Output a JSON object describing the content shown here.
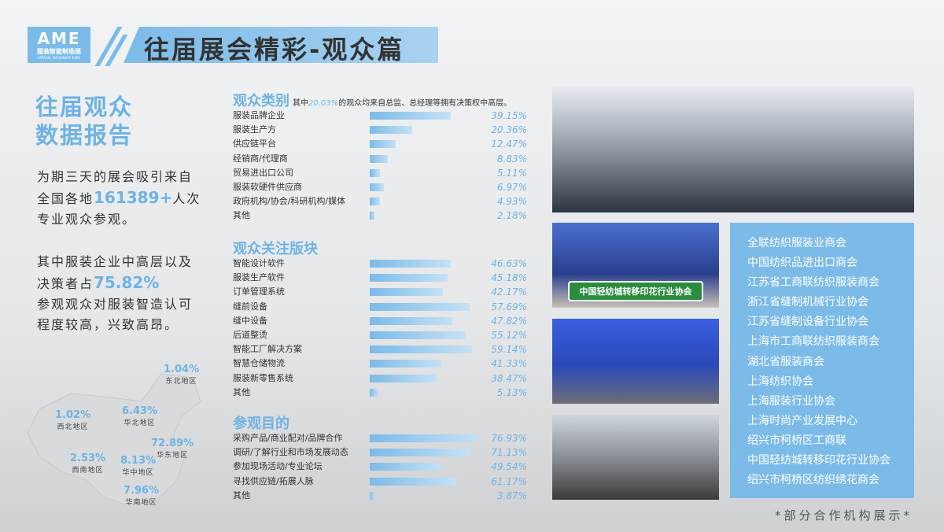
{
  "header": {
    "logo_main": "AME",
    "logo_sub": "服装智能制造展",
    "logo_en": "APPAREL MACHINERY EXPO",
    "title": "往届展会精彩-观众篇"
  },
  "left": {
    "title_line1": "往届观众",
    "title_line2": "数据报告",
    "p1_a": "为期三天的展会吸引来自全国各地",
    "p1_num": "161389+",
    "p1_b": "人次专业观众参观。",
    "p2_a": "其中服装企业中高层以及决策者占",
    "p2_num": "75.82%",
    "p2_b": "参观观众对服装智造认可程度较高，兴致高昂。"
  },
  "regions": [
    {
      "pct": "1.04%",
      "name": "东北地区"
    },
    {
      "pct": "1.02%",
      "name": "西北地区"
    },
    {
      "pct": "6.43%",
      "name": "华北地区"
    },
    {
      "pct": "72.89%",
      "name": "华东地区"
    },
    {
      "pct": "2.53%",
      "name": "西南地区"
    },
    {
      "pct": "8.13%",
      "name": "华中地区"
    },
    {
      "pct": "7.96%",
      "name": "华南地区"
    }
  ],
  "sections": [
    {
      "title": "观众类别",
      "note_a": "其中",
      "note_pct": "20.03%",
      "note_b": "的观众均来自总监、总经理等拥有决策权中高层。",
      "items": [
        [
          "服装品牌企业",
          39.15
        ],
        [
          "服装生产方",
          20.36
        ],
        [
          "供应链平台",
          12.47
        ],
        [
          "经销商/代理商",
          8.83
        ],
        [
          "贸易进出口公司",
          5.11
        ],
        [
          "服装软硬件供应商",
          6.97
        ],
        [
          "政府机构/协会/科研机构/媒体",
          4.93
        ],
        [
          "其他",
          2.18
        ]
      ]
    },
    {
      "title": "观众关注版块",
      "items": [
        [
          "智能设计软件",
          46.63
        ],
        [
          "服装生产软件",
          45.18
        ],
        [
          "订单管理系统",
          42.17
        ],
        [
          "缝前设备",
          57.69
        ],
        [
          "缝中设备",
          47.82
        ],
        [
          "后道整烫",
          55.12
        ],
        [
          "智能工厂解决方案",
          59.14
        ],
        [
          "智慧仓储物流",
          41.33
        ],
        [
          "服装新零售系统",
          38.47
        ],
        [
          "其他",
          5.13
        ]
      ]
    },
    {
      "title": "参观目的",
      "items": [
        [
          "采购产品/商业配对/品牌合作",
          76.93
        ],
        [
          "调研/了解行业和市场发展动态",
          71.13
        ],
        [
          "参加现场活动/专业论坛",
          49.54
        ],
        [
          "寻找供应链/拓展人脉",
          61.17
        ],
        [
          "其他",
          3.87
        ]
      ]
    }
  ],
  "photos": {
    "banner2": "中国轻纺城转移印花行业协会"
  },
  "orgs": [
    "全联纺织服装业商会",
    "中国纺织品进出口商会",
    "江苏省工商联纺织服装商会",
    "浙江省缝制机械行业协会",
    "江苏省缝制设备行业协会",
    "上海市工商联纺织服装商会",
    "湖北省服装商会",
    "上海纺织协会",
    "上海服装行业协会",
    "上海时尚产业发展中心",
    "绍兴市柯桥区工商联",
    "中国轻纺城转移印花行业协会",
    "绍兴市柯桥区纺织绣花商会"
  ],
  "footer": "*部分合作机构展示*",
  "colors": {
    "accent": "#7cbbe8",
    "highlight": "#6fb3e4"
  }
}
